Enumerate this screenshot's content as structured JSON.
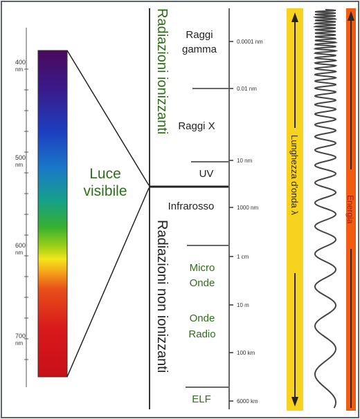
{
  "nm_ticks": [
    "400",
    "500",
    "600",
    "700"
  ],
  "nm_unit": "nm",
  "visible_light": "Luce visibile",
  "groups": {
    "ionizing": "Radiazioni ionizzanti",
    "non_ionizing": "Radiazioni non ionizzanti"
  },
  "bands": {
    "gamma": "Raggi gamma",
    "xray": "Raggi X",
    "uv": "UV",
    "infrared": "Infrarosso",
    "micro": "Micro Onde",
    "radio": "Onde Radio",
    "elf": "ELF"
  },
  "scale_labels": [
    "0.0001 nm",
    "0.01 nm",
    "10 nm",
    "1000 nm",
    "1 cm",
    "10 m",
    "100 km",
    "6000 km"
  ],
  "wavelength_label": "Lunghezza d'onda λ",
  "energy_label": "Energia",
  "colors": {
    "spectrum_top": "#4a0a5c",
    "wavelength_bar": "#f7d21e",
    "energy_bar": "#f25c12",
    "green_text": "#2e6e1a",
    "energy_text": "#a01818"
  }
}
